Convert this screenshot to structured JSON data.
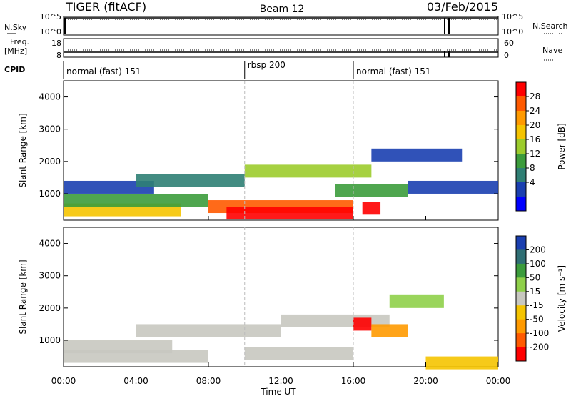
{
  "header": {
    "station": "TIGER (fitACF)",
    "beam": "Beam 12",
    "date": "03/Feb/2015"
  },
  "top_panels": {
    "nsky_label": "N.Sky",
    "nsky_ticks": [
      "10^5",
      "10^0"
    ],
    "nsearch_label": "N.Search",
    "nsearch_ticks": [
      "10^5",
      "10^0"
    ],
    "freq_label": "Freq.",
    "freq_unit": "[MHz]",
    "freq_ticks": [
      "18",
      "8"
    ],
    "nave_label": "Nave",
    "nave_ticks": [
      "60",
      "0"
    ],
    "cpid_label": "CPID",
    "cpid_segments": [
      {
        "start_hour": 0,
        "end_hour": 10,
        "label": "normal (fast) 151"
      },
      {
        "start_hour": 10,
        "end_hour": 16,
        "label": "rbsp 200"
      },
      {
        "start_hour": 16,
        "end_hour": 24,
        "label": "normal (fast) 151"
      }
    ]
  },
  "chart_data": [
    {
      "type": "heatmap",
      "panel": "power",
      "ylabel": "Slant Range [km]",
      "yticks": [
        "1000",
        "2000",
        "3000",
        "4000"
      ],
      "ylim": [
        180,
        4500
      ],
      "xlim": [
        0,
        24
      ],
      "colorbar_label": "Power [dB]",
      "colorbar_ticks": [
        "28",
        "24",
        "20",
        "16",
        "12",
        "8",
        "4"
      ],
      "colorbar_colors": [
        "#ff0000",
        "#ff5a00",
        "#ff9a00",
        "#f5c400",
        "#9ccc2c",
        "#3c9c3c",
        "#2f7f74",
        "#1a3fb0",
        "#0000ff"
      ],
      "echo_bands": [
        {
          "start_hour": 0.0,
          "end_hour": 6.5,
          "range_km": 500,
          "level": 3
        },
        {
          "start_hour": 0.0,
          "end_hour": 8.0,
          "range_km": 800,
          "level": 5
        },
        {
          "start_hour": 0.0,
          "end_hour": 5.0,
          "range_km": 1200,
          "level": 7
        },
        {
          "start_hour": 4.0,
          "end_hour": 10.0,
          "range_km": 1400,
          "level": 6
        },
        {
          "start_hour": 8.0,
          "end_hour": 16.0,
          "range_km": 600,
          "level": 1
        },
        {
          "start_hour": 9.0,
          "end_hour": 16.0,
          "range_km": 400,
          "level": 0
        },
        {
          "start_hour": 10.0,
          "end_hour": 17.0,
          "range_km": 1700,
          "level": 4
        },
        {
          "start_hour": 15.0,
          "end_hour": 19.0,
          "range_km": 1100,
          "level": 5
        },
        {
          "start_hour": 16.5,
          "end_hour": 17.5,
          "range_km": 550,
          "level": 0
        },
        {
          "start_hour": 17.0,
          "end_hour": 22.0,
          "range_km": 2200,
          "level": 7
        },
        {
          "start_hour": 19.0,
          "end_hour": 24.0,
          "range_km": 1200,
          "level": 7
        }
      ]
    },
    {
      "type": "heatmap",
      "panel": "velocity",
      "ylabel": "Slant Range [km]",
      "yticks": [
        "1000",
        "2000",
        "3000",
        "4000"
      ],
      "ylim": [
        180,
        4500
      ],
      "xlim": [
        0,
        24
      ],
      "xticks": [
        "00:00",
        "04:00",
        "08:00",
        "12:00",
        "16:00",
        "20:00",
        "00:00"
      ],
      "xlabel": "Time UT",
      "colorbar_label": "Velocity [m s⁻¹]",
      "colorbar_ticks": [
        "200",
        "100",
        "50",
        "15",
        "-15",
        "-50",
        "-100",
        "-200"
      ],
      "colorbar_colors": [
        "#1a3fb0",
        "#2f6f74",
        "#3c9c3c",
        "#8fd04a",
        "#c8c8c0",
        "#f5c400",
        "#ff9a00",
        "#ff5a00",
        "#ff0000"
      ],
      "echo_bands": [
        {
          "start_hour": 0.0,
          "end_hour": 8.0,
          "range_km": 500,
          "level": 4
        },
        {
          "start_hour": 0.0,
          "end_hour": 6.0,
          "range_km": 800,
          "level": 4
        },
        {
          "start_hour": 4.0,
          "end_hour": 12.0,
          "range_km": 1300,
          "level": 4
        },
        {
          "start_hour": 10.0,
          "end_hour": 16.0,
          "range_km": 600,
          "level": 4
        },
        {
          "start_hour": 12.0,
          "end_hour": 18.0,
          "range_km": 1600,
          "level": 4
        },
        {
          "start_hour": 16.0,
          "end_hour": 17.0,
          "range_km": 1500,
          "level": 8
        },
        {
          "start_hour": 17.0,
          "end_hour": 19.0,
          "range_km": 1300,
          "level": 6
        },
        {
          "start_hour": 18.0,
          "end_hour": 21.0,
          "range_km": 2200,
          "level": 3
        },
        {
          "start_hour": 20.0,
          "end_hour": 24.0,
          "range_km": 300,
          "level": 5
        }
      ]
    }
  ]
}
